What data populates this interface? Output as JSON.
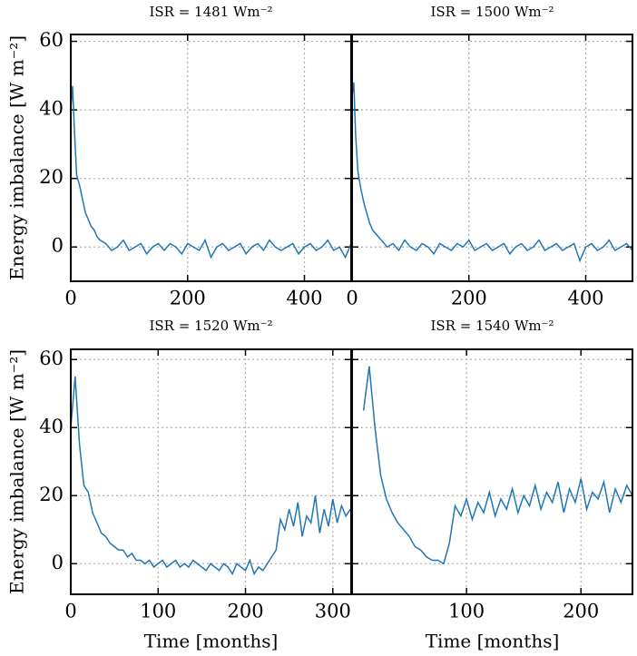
{
  "chart_data": [
    {
      "type": "line",
      "title": "ISR = 1481 Wm⁻²",
      "ylabel": "Energy imbalance [W m⁻²]",
      "x": [
        0,
        3,
        6,
        10,
        15,
        20,
        25,
        30,
        35,
        40,
        45,
        50,
        60,
        70,
        80,
        90,
        100,
        110,
        120,
        130,
        140,
        150,
        160,
        170,
        180,
        190,
        200,
        210,
        220,
        230,
        240,
        250,
        260,
        270,
        280,
        290,
        300,
        310,
        320,
        330,
        340,
        350,
        360,
        370,
        380,
        390,
        400,
        410,
        420,
        430,
        440,
        450,
        460,
        470,
        480
      ],
      "series": [
        {
          "color": "#1f77b4",
          "values": [
            40,
            47,
            35,
            21,
            18,
            14,
            10,
            8,
            6,
            5,
            3,
            2,
            1,
            -1,
            0,
            2,
            -1,
            0,
            1,
            -2,
            0,
            1,
            -1,
            1,
            0,
            -2,
            1,
            0,
            -1,
            2,
            -3,
            0,
            1,
            -1,
            0,
            1,
            -2,
            0,
            1,
            -1,
            2,
            0,
            -1,
            0,
            1,
            -2,
            0,
            1,
            -1,
            0,
            2,
            -1,
            0,
            -3,
            1
          ]
        }
      ],
      "xlim": [
        0,
        480
      ],
      "xticks": [
        0,
        200,
        400
      ],
      "ylim": [
        -10,
        62
      ],
      "yticks": [
        0,
        20,
        40,
        60
      ],
      "show_ytick_labels": true,
      "grid": true
    },
    {
      "type": "line",
      "title": "ISR = 1500 Wm⁻²",
      "x": [
        0,
        3,
        6,
        10,
        15,
        20,
        25,
        30,
        35,
        40,
        45,
        50,
        60,
        70,
        80,
        90,
        100,
        110,
        120,
        130,
        140,
        150,
        160,
        170,
        180,
        190,
        200,
        210,
        220,
        230,
        240,
        250,
        260,
        270,
        280,
        290,
        300,
        310,
        320,
        330,
        340,
        350,
        360,
        370,
        380,
        390,
        400,
        410,
        420,
        430,
        440,
        450,
        460,
        470,
        480
      ],
      "series": [
        {
          "color": "#1f77b4",
          "values": [
            44,
            48,
            33,
            22,
            17,
            13,
            10,
            7,
            5,
            4,
            3,
            2,
            0,
            1,
            -1,
            2,
            0,
            -1,
            1,
            0,
            -2,
            1,
            0,
            -1,
            1,
            0,
            2,
            -1,
            0,
            1,
            -1,
            0,
            1,
            -2,
            0,
            1,
            -1,
            0,
            2,
            -1,
            0,
            1,
            -1,
            0,
            1,
            -4,
            0,
            1,
            -1,
            0,
            2,
            -1,
            0,
            1,
            -1
          ]
        }
      ],
      "xlim": [
        0,
        480
      ],
      "xticks": [
        0,
        200,
        400
      ],
      "ylim": [
        -10,
        62
      ],
      "yticks": [
        0,
        20,
        40,
        60
      ],
      "show_ytick_labels": false,
      "grid": true
    },
    {
      "type": "line",
      "title": "ISR = 1520 Wm⁻²",
      "ylabel": "Energy imbalance [W m⁻²]",
      "xlabel": "Time [months]",
      "x": [
        0,
        5,
        10,
        15,
        20,
        25,
        30,
        35,
        40,
        45,
        50,
        55,
        60,
        65,
        70,
        75,
        80,
        85,
        90,
        95,
        100,
        105,
        110,
        115,
        120,
        125,
        130,
        135,
        140,
        145,
        150,
        155,
        160,
        165,
        170,
        175,
        180,
        185,
        190,
        195,
        200,
        205,
        210,
        215,
        220,
        225,
        230,
        235,
        240,
        245,
        250,
        255,
        260,
        265,
        270,
        275,
        280,
        285,
        290,
        295,
        300,
        305,
        310,
        315,
        320
      ],
      "series": [
        {
          "color": "#1f77b4",
          "values": [
            40,
            55,
            35,
            23,
            21,
            15,
            12,
            9,
            8,
            6,
            5,
            4,
            4,
            2,
            3,
            1,
            1,
            0,
            1,
            -1,
            0,
            1,
            -1,
            0,
            1,
            -1,
            0,
            -1,
            1,
            0,
            -1,
            -2,
            0,
            -1,
            -2,
            0,
            -1,
            -3,
            0,
            -1,
            -2,
            1,
            -3,
            -1,
            -2,
            0,
            2,
            4,
            13,
            10,
            16,
            11,
            18,
            8,
            14,
            12,
            20,
            9,
            16,
            11,
            19,
            12,
            17,
            14,
            16
          ]
        }
      ],
      "xlim": [
        0,
        321
      ],
      "xticks": [
        0,
        100,
        200,
        300
      ],
      "ylim": [
        -9,
        63
      ],
      "yticks": [
        0,
        20,
        40,
        60
      ],
      "show_ytick_labels": true,
      "grid": true
    },
    {
      "type": "line",
      "title": "ISR = 1540 Wm⁻²",
      "xlabel": "Time [months]",
      "x": [
        10,
        15,
        20,
        25,
        30,
        35,
        40,
        45,
        50,
        55,
        60,
        65,
        70,
        75,
        80,
        85,
        90,
        95,
        100,
        105,
        110,
        115,
        120,
        125,
        130,
        135,
        140,
        145,
        150,
        155,
        160,
        165,
        170,
        175,
        180,
        185,
        190,
        195,
        200,
        205,
        210,
        215,
        220,
        225,
        230,
        235,
        240,
        245
      ],
      "series": [
        {
          "color": "#1f77b4",
          "values": [
            45,
            58,
            40,
            26,
            19,
            15,
            12,
            10,
            8,
            5,
            4,
            2,
            1,
            1,
            0,
            6,
            17,
            14,
            19,
            13,
            18,
            15,
            21,
            14,
            19,
            16,
            22,
            15,
            20,
            17,
            23,
            16,
            21,
            18,
            24,
            15,
            22,
            18,
            25,
            16,
            21,
            19,
            24,
            15,
            22,
            18,
            23,
            20
          ]
        }
      ],
      "xlim": [
        0,
        245
      ],
      "xticks": [
        100,
        200
      ],
      "ylim": [
        -9,
        63
      ],
      "yticks": [
        0,
        20,
        40,
        60
      ],
      "show_ytick_labels": false,
      "grid": true
    }
  ]
}
